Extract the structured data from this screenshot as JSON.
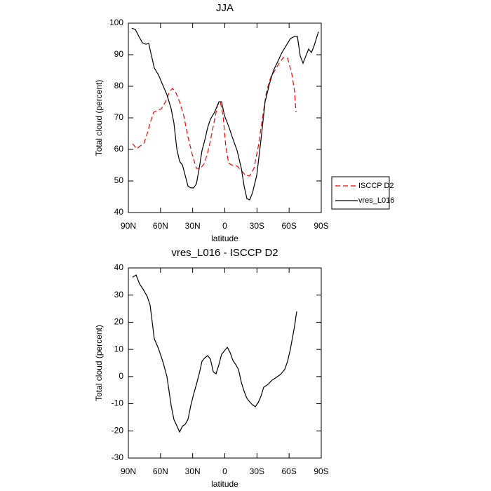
{
  "chart_data": [
    {
      "type": "line",
      "title": "JJA",
      "x_label": "latitude",
      "y_label": "Total cloud (percent)",
      "xlim": [
        90,
        -90
      ],
      "ylim": [
        40,
        100
      ],
      "xticks": [
        {
          "value": 90,
          "label": "90N"
        },
        {
          "value": 60,
          "label": "60N"
        },
        {
          "value": 30,
          "label": "30N"
        },
        0,
        {
          "value": -30,
          "label": "30S"
        },
        {
          "value": -60,
          "label": "60S"
        },
        {
          "value": -90,
          "label": "90S"
        }
      ],
      "yticks": [
        40,
        50,
        60,
        70,
        80,
        90,
        100
      ],
      "legend": "right",
      "series": [
        {
          "name": "ISCCP D2",
          "color": "#ff0000",
          "dashed": true,
          "x": [
            86.1,
            82.1,
            78.9,
            75.6,
            72.3,
            69.7,
            66.4,
            63.2,
            59.2,
            55.3,
            51.4,
            48.8,
            46.2,
            42.2,
            38.3,
            34.4,
            30.4,
            26.5,
            22.6,
            18.7,
            14.7,
            10.8,
            6.8,
            4.2,
            1.6,
            -1.0,
            -3.6,
            -7.6,
            -11.5,
            -15.4,
            -19.3,
            -23.2,
            -27.2,
            -31.1,
            -35.0,
            -38.9,
            -42.9,
            -46.8,
            -50.7,
            -54.6,
            -58.6,
            -62.5,
            -65.1,
            -66.4
          ],
          "values": [
            61.8,
            60.2,
            61.1,
            61.8,
            65.1,
            68.4,
            71.8,
            72.2,
            72.9,
            75.1,
            78.4,
            79.3,
            78.4,
            75.1,
            70.7,
            64.0,
            58.4,
            54.0,
            54.0,
            55.8,
            60.7,
            67.3,
            74.0,
            75.1,
            70.7,
            60.7,
            55.6,
            54.9,
            54.7,
            53.3,
            51.8,
            51.6,
            54.0,
            60.7,
            69.6,
            78.4,
            82.9,
            85.1,
            87.3,
            89.1,
            88.9,
            84.0,
            78.4,
            71.8
          ]
        },
        {
          "name": "vres_L016",
          "color": "#000000",
          "dashed": false,
          "x": [
            86.7,
            83.5,
            80.2,
            76.9,
            73.6,
            71.0,
            68.4,
            65.8,
            61.9,
            57.9,
            54.0,
            50.1,
            47.5,
            44.8,
            42.2,
            39.6,
            37.0,
            34.4,
            31.7,
            29.1,
            26.5,
            23.9,
            21.3,
            18.7,
            16.0,
            13.4,
            9.5,
            5.5,
            3.0,
            0.3,
            -3.6,
            -7.6,
            -11.5,
            -15.4,
            -18.0,
            -20.6,
            -23.2,
            -25.8,
            -29.8,
            -33.7,
            -37.6,
            -41.6,
            -45.5,
            -49.4,
            -53.3,
            -57.3,
            -61.2,
            -65.1,
            -67.7,
            -70.4,
            -73.0,
            -75.6,
            -78.2,
            -80.8,
            -83.4,
            -87.4
          ],
          "values": [
            98.4,
            98.0,
            95.8,
            93.8,
            93.3,
            93.6,
            89.6,
            85.8,
            83.6,
            80.4,
            77.3,
            72.9,
            68.4,
            60.2,
            56.2,
            55.1,
            51.8,
            48.4,
            47.8,
            47.8,
            49.1,
            54.0,
            59.6,
            62.9,
            66.9,
            69.6,
            71.8,
            75.1,
            75.1,
            70.7,
            67.3,
            63.3,
            59.6,
            54.0,
            48.4,
            44.4,
            44.0,
            46.2,
            51.8,
            62.9,
            75.1,
            80.7,
            85.1,
            87.8,
            90.7,
            92.9,
            95.1,
            95.8,
            95.8,
            89.6,
            87.3,
            89.6,
            91.8,
            90.7,
            92.9,
            97.3
          ]
        }
      ]
    },
    {
      "type": "line",
      "title": "vres_L016 - ISCCP D2",
      "x_label": "latitude",
      "y_label": "Total cloud (percent)",
      "xlim": [
        90,
        -90
      ],
      "ylim": [
        -30,
        40
      ],
      "xticks": [
        {
          "value": 90,
          "label": "90N"
        },
        {
          "value": 60,
          "label": "60N"
        },
        {
          "value": 30,
          "label": "30N"
        },
        0,
        {
          "value": -30,
          "label": "30S"
        },
        {
          "value": -60,
          "label": "60S"
        },
        {
          "value": -90,
          "label": "90S"
        }
      ],
      "yticks": [
        -30,
        -20,
        -10,
        0,
        10,
        20,
        30,
        40
      ],
      "series": [
        {
          "color": "#000000",
          "dashed": false,
          "x": [
            86.1,
            82.8,
            79.5,
            76.3,
            72.3,
            69.7,
            65.8,
            61.9,
            57.9,
            54.0,
            50.1,
            47.5,
            44.8,
            42.2,
            39.6,
            37.0,
            34.4,
            31.7,
            29.1,
            26.5,
            23.9,
            21.3,
            18.7,
            16.0,
            13.4,
            10.8,
            8.2,
            5.5,
            3.0,
            0.3,
            -2.3,
            -5.0,
            -7.6,
            -10.2,
            -12.8,
            -15.4,
            -18.0,
            -20.6,
            -23.2,
            -25.8,
            -28.5,
            -31.1,
            -33.7,
            -36.3,
            -40.2,
            -44.2,
            -48.1,
            -52.0,
            -55.9,
            -58.6,
            -61.2,
            -65.1,
            -67.1
          ],
          "values": [
            36.6,
            37.4,
            34.1,
            32.2,
            29.4,
            26.3,
            13.9,
            10.3,
            5.6,
            0.0,
            -10.6,
            -15.8,
            -18.1,
            -20.4,
            -18.3,
            -17.6,
            -15.8,
            -10.6,
            -6.5,
            -2.9,
            1.0,
            5.6,
            6.9,
            7.7,
            6.4,
            1.8,
            1.0,
            4.4,
            8.2,
            9.5,
            10.8,
            8.8,
            5.9,
            4.4,
            2.6,
            -2.1,
            -5.4,
            -8.0,
            -9.3,
            -10.4,
            -11.1,
            -9.6,
            -7.3,
            -3.9,
            -2.9,
            -1.3,
            -0.3,
            0.8,
            2.6,
            5.7,
            10.1,
            18.6,
            24.0
          ]
        }
      ]
    }
  ]
}
